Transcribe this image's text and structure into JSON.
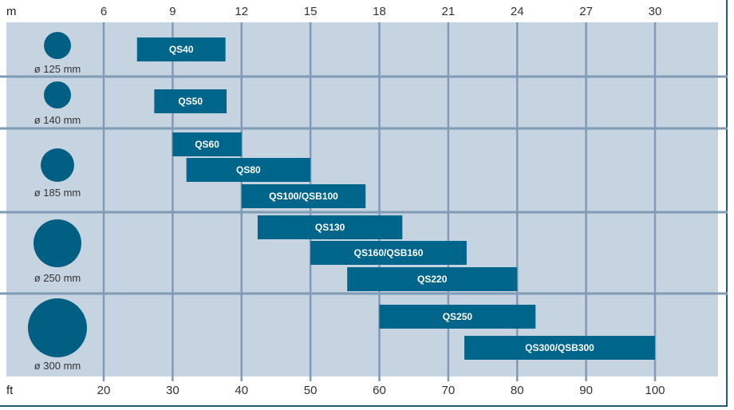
{
  "chart_data": {
    "type": "bar",
    "subtype": "floating-range-horizontal",
    "top_axis": {
      "unit": "m",
      "ticks": [
        6,
        9,
        12,
        15,
        18,
        21,
        24,
        27,
        30
      ]
    },
    "bottom_axis": {
      "unit": "ft",
      "ticks": [
        20,
        30,
        40,
        50,
        60,
        70,
        80,
        90,
        100
      ]
    },
    "xlim_m": [
      1.8,
      32.7
    ],
    "groups": [
      {
        "diameter": "ø 125 mm",
        "diameter_mm": 125,
        "bars": [
          {
            "name": "QS40",
            "range_m": [
              7.45,
              11.3
            ]
          }
        ]
      },
      {
        "diameter": "ø 140 mm",
        "diameter_mm": 140,
        "bars": [
          {
            "name": "QS50",
            "range_m": [
              8.2,
              11.35
            ]
          }
        ]
      },
      {
        "diameter": "ø 185 mm",
        "diameter_mm": 185,
        "bars": [
          {
            "name": "QS60",
            "range_m": [
              9.0,
              12.0
            ]
          },
          {
            "name": "QS80",
            "range_m": [
              9.6,
              15.0
            ]
          },
          {
            "name": "QS100/QSB100",
            "range_m": [
              12.0,
              17.4
            ]
          }
        ]
      },
      {
        "diameter": "ø 250 mm",
        "diameter_mm": 250,
        "bars": [
          {
            "name": "QS130",
            "range_m": [
              12.7,
              19.0
            ]
          },
          {
            "name": "QS160/QSB160",
            "range_m": [
              15.0,
              21.8
            ]
          },
          {
            "name": "QS220",
            "range_m": [
              16.6,
              24.0
            ]
          }
        ]
      },
      {
        "diameter": "ø 300 mm",
        "diameter_mm": 300,
        "bars": [
          {
            "name": "QS250",
            "range_m": [
              18.0,
              24.8
            ]
          },
          {
            "name": "QS300/QSB300",
            "range_m": [
              21.7,
              30.0
            ]
          }
        ]
      }
    ],
    "grid": true,
    "colors": {
      "background": "#c6d3e0",
      "grid": "#7f9bb5",
      "bar": "#00658b",
      "circle": "#005f82"
    }
  }
}
